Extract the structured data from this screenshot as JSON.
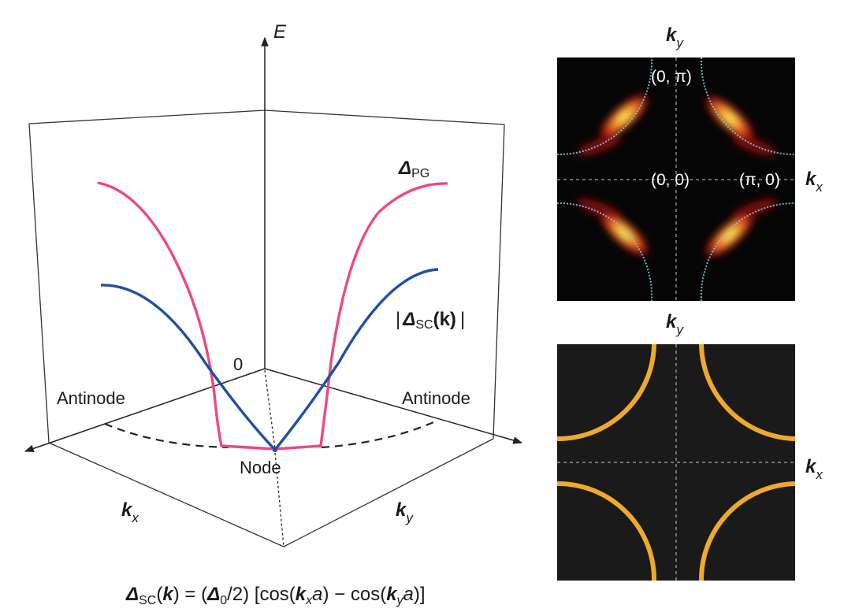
{
  "diagram3d": {
    "axis_e_label": "E",
    "axis_kx_label": "k",
    "axis_kx_sub": "x",
    "axis_ky_label": "k",
    "axis_ky_sub": "y",
    "zero_label": "0",
    "antinode_left": "Antinode",
    "antinode_right": "Antinode",
    "node_label": "Node",
    "pg_label": "Δ",
    "pg_sub": "PG",
    "sc_bar_left": "|",
    "sc_label": "Δ",
    "sc_sub": "SC",
    "sc_arg": "(k)",
    "sc_bar_right": "|",
    "colors": {
      "pg": "#f0477e",
      "sc": "#1f4fa6"
    }
  },
  "formula": {
    "lhs": "Δ",
    "lhs_sub": "SC",
    "lhs_paren_open": "(",
    "lhs_k": "k",
    "lhs_paren_close": ")",
    "eq": " = (",
    "d0": "Δ",
    "d0_sub": "0",
    "half": "/2) [cos(",
    "k1": "k",
    "k1_sub": "x",
    "a1": "a",
    "minus": ") − cos(",
    "k2": "k",
    "k2_sub": "y",
    "a2": "a",
    "end": ")]"
  },
  "top_panel": {
    "ky_label": "k",
    "ky_sub": "y",
    "kx_label": "k",
    "kx_sub": "x",
    "pt_0pi": "(0, π)",
    "pt_00": "(0, 0)",
    "pt_pi0": "(π, 0)",
    "colors": {
      "background": "#050505",
      "contour": "#7ec8d6"
    }
  },
  "bottom_panel": {
    "ky_label": "k",
    "ky_sub": "y",
    "kx_label": "k",
    "kx_sub": "x",
    "colors": {
      "background": "#1a1a1a",
      "arc": "#eeaa2d"
    }
  }
}
